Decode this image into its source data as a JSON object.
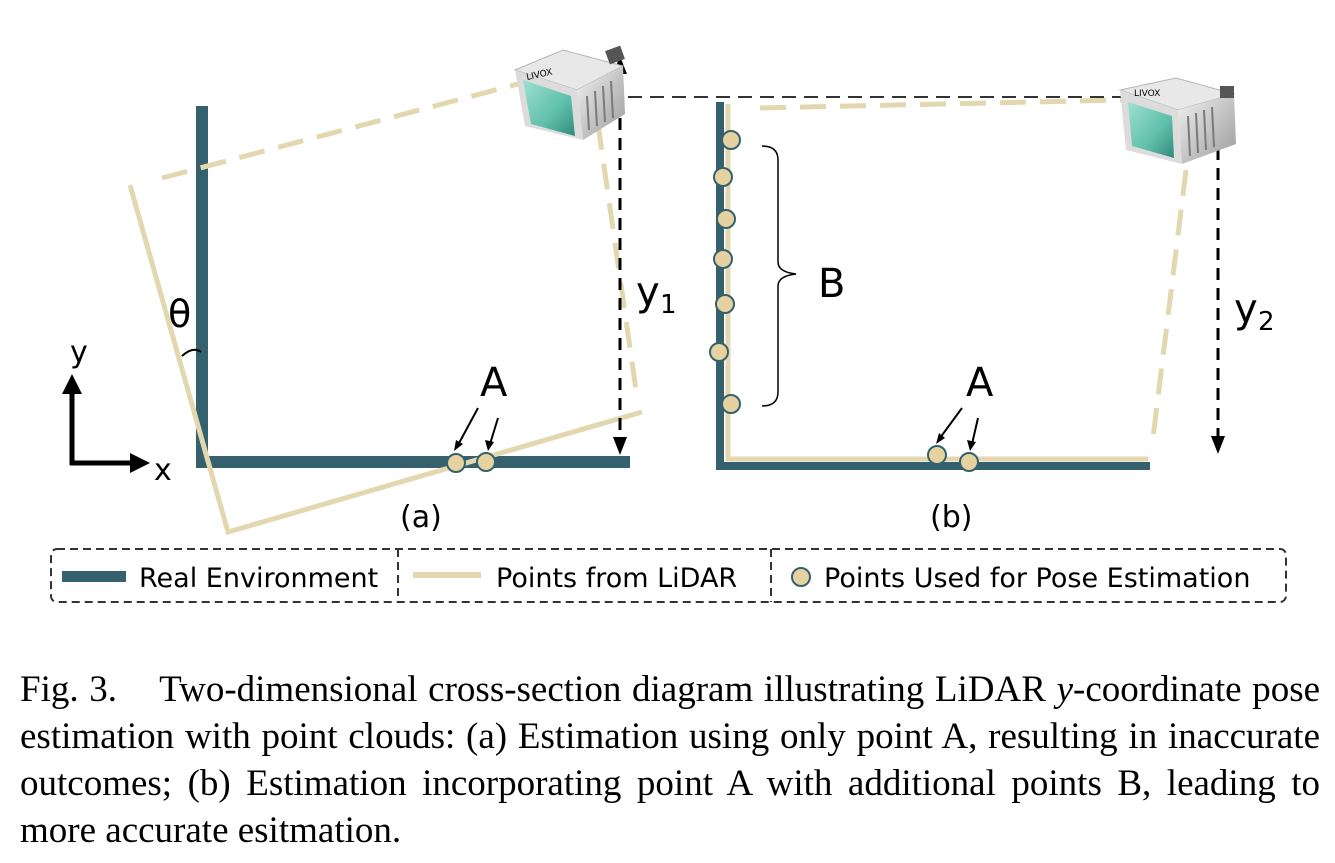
{
  "labels": {
    "theta": "θ",
    "y1": "y",
    "y1_sub": "1",
    "y2": "y",
    "y2_sub": "2",
    "axis_x": "x",
    "axis_y": "y",
    "point_a_left": "A",
    "point_a_right": "A",
    "group_b": "B",
    "panel_a": "(a)",
    "panel_b": "(b)"
  },
  "legend": {
    "real_environment": "Real Environment",
    "points_from_lidar": "Points from LiDAR",
    "points_used": "Points Used for Pose Estimation"
  },
  "device": {
    "brand_text": "LIVOX"
  },
  "colors": {
    "real_environment": "#35616E",
    "lidar_points": "#E3D7B0",
    "point_fill": "#E6D2A0",
    "device_lens": "#6FC9B8"
  },
  "caption": {
    "prefix": "Fig. 3.",
    "text_1": "Two-dimensional cross-section diagram illustrating LiDAR",
    "var": "y",
    "text_2": "-coordinate pose estimation with point clouds: (a) Estimation using only point A, resulting in inaccurate outcomes; (b) Estimation incorporating point A with additional points B, leading to more accurate esitmation."
  }
}
